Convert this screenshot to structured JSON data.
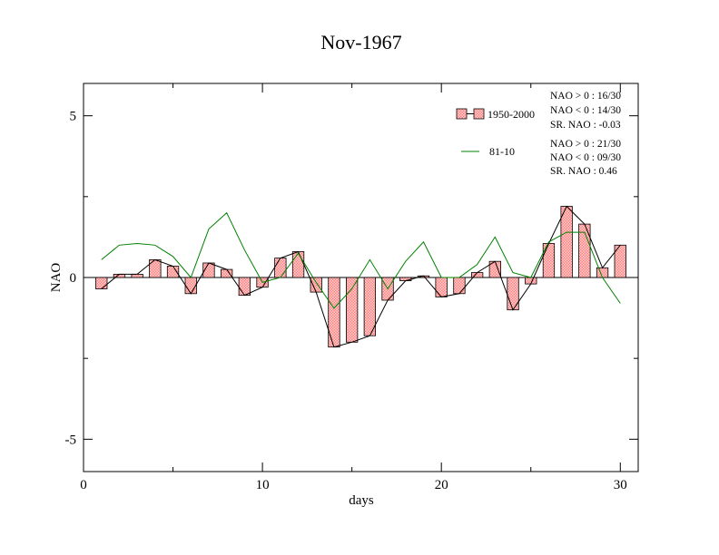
{
  "chart_data": {
    "type": "bar",
    "title": "Nov-1967",
    "xlabel": "days",
    "ylabel": "NAO",
    "xlim": [
      0,
      31
    ],
    "ylim": [
      -6,
      6
    ],
    "xticks": [
      0,
      10,
      20,
      30
    ],
    "yticks": [
      -5,
      0,
      5
    ],
    "grid": false,
    "legend_position": "top-right",
    "x": [
      1,
      2,
      3,
      4,
      5,
      6,
      7,
      8,
      9,
      10,
      11,
      12,
      13,
      14,
      15,
      16,
      17,
      18,
      19,
      20,
      21,
      22,
      23,
      24,
      25,
      26,
      27,
      28,
      29,
      30
    ],
    "series": [
      {
        "name": "1950-2000",
        "kind": "bar",
        "color": "#ff8080",
        "values": [
          -0.35,
          0.1,
          0.1,
          0.55,
          0.35,
          -0.5,
          0.45,
          0.25,
          -0.55,
          -0.3,
          0.6,
          0.8,
          -0.45,
          -2.15,
          -2.0,
          -1.8,
          -0.7,
          -0.1,
          0.05,
          -0.6,
          -0.5,
          0.15,
          0.5,
          -1.0,
          -0.2,
          1.05,
          2.2,
          1.65,
          0.3,
          1.0
        ]
      },
      {
        "name": "81-10",
        "kind": "line",
        "color": "#008000",
        "values": [
          0.55,
          1.0,
          1.05,
          1.0,
          0.65,
          0.0,
          1.5,
          2.0,
          0.85,
          -0.15,
          0.0,
          0.75,
          -0.15,
          -0.95,
          -0.35,
          0.55,
          -0.35,
          0.5,
          1.1,
          0.0,
          0.0,
          0.4,
          1.25,
          0.15,
          0.0,
          1.1,
          1.4,
          1.4,
          0.0,
          -0.8
        ]
      }
    ],
    "stats": {
      "s1": [
        "NAO > 0 :  16/30",
        "NAO < 0 :  14/30",
        "SR. NAO :  -0.03"
      ],
      "s2": [
        "NAO > 0 :  21/30",
        "NAO < 0 :  09/30",
        "SR. NAO :   0.46"
      ]
    }
  }
}
